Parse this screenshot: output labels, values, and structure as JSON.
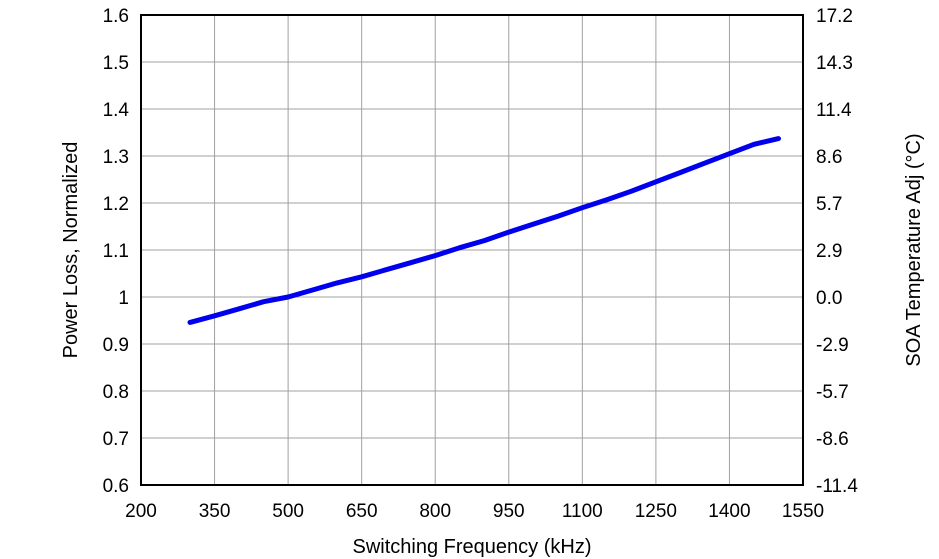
{
  "chart_data": {
    "type": "line",
    "title": "",
    "xlabel": "Switching Frequency (kHz)",
    "ylabel": "Power Loss, Normalized",
    "y2label": "SOA Temperature Adj (°C)",
    "xlim": [
      200,
      1550
    ],
    "ylim": [
      0.6,
      1.6
    ],
    "x_ticks": [
      "200",
      "350",
      "500",
      "650",
      "800",
      "950",
      "1100",
      "1250",
      "1400",
      "1550"
    ],
    "y_ticks": [
      "0.6",
      "0.7",
      "0.8",
      "0.9",
      "1",
      "1.1",
      "1.2",
      "1.3",
      "1.4",
      "1.5",
      "1.6"
    ],
    "y2_ticks": [
      "-11.4",
      "-8.6",
      "-5.7",
      "-2.9",
      "0.0",
      "2.9",
      "5.7",
      "8.6",
      "11.4",
      "14.3",
      "17.2"
    ],
    "grid": true,
    "series": [
      {
        "color": "#0000ee",
        "x": [
          300,
          350,
          400,
          450,
          500,
          550,
          600,
          650,
          700,
          750,
          800,
          850,
          900,
          950,
          1000,
          1050,
          1100,
          1150,
          1200,
          1250,
          1300,
          1350,
          1400,
          1450,
          1500
        ],
        "y": [
          0.946,
          0.96,
          0.975,
          0.99,
          1.0,
          1.015,
          1.03,
          1.043,
          1.058,
          1.073,
          1.088,
          1.105,
          1.12,
          1.138,
          1.155,
          1.172,
          1.19,
          1.207,
          1.225,
          1.245,
          1.265,
          1.285,
          1.305,
          1.325,
          1.337
        ]
      }
    ]
  }
}
